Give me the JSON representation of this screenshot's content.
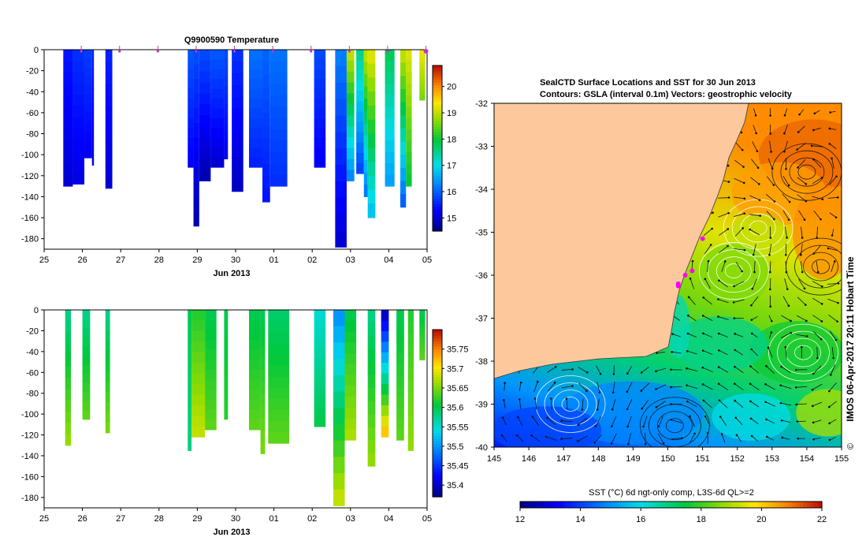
{
  "chart_data": [
    {
      "type": "heatmap",
      "title": "Q9900590  Temperature",
      "xlabel": "Jun 2013",
      "ylabel": "",
      "x_ticks": [
        "25",
        "26",
        "27",
        "28",
        "29",
        "30",
        "01",
        "02",
        "03",
        "04",
        "05"
      ],
      "y_ticks": [
        "0",
        "-20",
        "-40",
        "-60",
        "-80",
        "-100",
        "-120",
        "-140",
        "-160",
        "-180"
      ],
      "xlim": [
        25,
        35
      ],
      "ylim": [
        -190,
        0
      ],
      "colorbar": {
        "ticks": [
          "15",
          "16",
          "17",
          "18",
          "19",
          "20"
        ],
        "range": [
          14.5,
          20.8
        ]
      },
      "profiles": [
        {
          "day": 25.5,
          "width": 0.25,
          "depth": 130,
          "top": 15.4,
          "bottom": 15.0
        },
        {
          "day": 25.75,
          "width": 0.3,
          "depth": 128,
          "top": 15.6,
          "bottom": 15.1
        },
        {
          "day": 26.05,
          "width": 0.2,
          "depth": 103,
          "top": 15.7,
          "bottom": 15.2
        },
        {
          "day": 26.25,
          "width": 0.05,
          "depth": 110,
          "top": 15.5,
          "bottom": 15.0
        },
        {
          "day": 26.6,
          "width": 0.18,
          "depth": 132,
          "top": 15.5,
          "bottom": 15.0
        },
        {
          "day": 28.75,
          "width": 0.15,
          "depth": 112,
          "top": 15.9,
          "bottom": 15.2
        },
        {
          "day": 28.9,
          "width": 0.15,
          "depth": 168,
          "top": 15.8,
          "bottom": 14.8
        },
        {
          "day": 29.05,
          "width": 0.3,
          "depth": 125,
          "top": 15.8,
          "bottom": 14.8
        },
        {
          "day": 29.35,
          "width": 0.35,
          "depth": 112,
          "top": 15.9,
          "bottom": 15.0
        },
        {
          "day": 29.7,
          "width": 0.1,
          "depth": 104,
          "top": 15.8,
          "bottom": 15.2
        },
        {
          "day": 29.9,
          "width": 0.3,
          "depth": 135,
          "top": 15.6,
          "bottom": 14.9
        },
        {
          "day": 30.35,
          "width": 0.35,
          "depth": 112,
          "top": 16.1,
          "bottom": 15.5
        },
        {
          "day": 30.7,
          "width": 0.2,
          "depth": 145,
          "top": 16.0,
          "bottom": 15.4
        },
        {
          "day": 30.9,
          "width": 0.45,
          "depth": 130,
          "top": 16.1,
          "bottom": 15.6
        },
        {
          "day": 32.05,
          "width": 0.3,
          "depth": 112,
          "top": 15.8,
          "bottom": 15.2
        },
        {
          "day": 32.6,
          "width": 0.3,
          "depth": 188,
          "top": 16.2,
          "bottom": 15.0
        },
        {
          "day": 32.9,
          "width": 0.2,
          "depth": 125,
          "top": 19.0,
          "bottom": 16.3
        },
        {
          "day": 33.15,
          "width": 0.2,
          "depth": 118,
          "top": 17.5,
          "bottom": 15.8
        },
        {
          "day": 33.35,
          "width": 0.1,
          "depth": 140,
          "top": 19.0,
          "bottom": 16.2
        },
        {
          "day": 33.45,
          "width": 0.2,
          "depth": 160,
          "top": 19.2,
          "bottom": 16.8
        },
        {
          "day": 33.9,
          "width": 0.25,
          "depth": 130,
          "top": 17.8,
          "bottom": 16.5
        },
        {
          "day": 34.3,
          "width": 0.15,
          "depth": 150,
          "top": 19.0,
          "bottom": 16.0
        },
        {
          "day": 34.45,
          "width": 0.15,
          "depth": 130,
          "top": 19.2,
          "bottom": 18.0
        },
        {
          "day": 34.8,
          "width": 0.15,
          "depth": 48,
          "top": 19.3,
          "bottom": 18.6
        }
      ],
      "cast_markers": [
        26,
        27,
        28,
        29,
        30,
        31,
        32,
        33,
        34,
        35
      ]
    },
    {
      "type": "heatmap",
      "title": "",
      "xlabel": "Jun 2013",
      "ylabel": "",
      "x_ticks": [
        "25",
        "26",
        "27",
        "28",
        "29",
        "30",
        "01",
        "02",
        "03",
        "04",
        "05"
      ],
      "y_ticks": [
        "0",
        "-20",
        "-40",
        "-60",
        "-80",
        "-100",
        "-120",
        "-140",
        "-160",
        "-180"
      ],
      "xlim": [
        25,
        35
      ],
      "ylim": [
        -190,
        0
      ],
      "colorbar": {
        "ticks": [
          "35.4",
          "35.45",
          "35.5",
          "35.55",
          "35.6",
          "35.65",
          "35.7",
          "35.75"
        ],
        "range": [
          35.37,
          35.8
        ]
      },
      "profiles": [
        {
          "day": 25.55,
          "width": 0.15,
          "depth": 130,
          "top": 35.58,
          "bottom": 35.66
        },
        {
          "day": 26.0,
          "width": 0.2,
          "depth": 105,
          "top": 35.58,
          "bottom": 35.64
        },
        {
          "day": 26.6,
          "width": 0.12,
          "depth": 118,
          "top": 35.58,
          "bottom": 35.65
        },
        {
          "day": 28.75,
          "width": 0.1,
          "depth": 135,
          "top": 35.6,
          "bottom": 35.58
        },
        {
          "day": 28.85,
          "width": 0.35,
          "depth": 122,
          "top": 35.62,
          "bottom": 35.68
        },
        {
          "day": 29.2,
          "width": 0.3,
          "depth": 115,
          "top": 35.6,
          "bottom": 35.64
        },
        {
          "day": 29.7,
          "width": 0.1,
          "depth": 105,
          "top": 35.6,
          "bottom": 35.62
        },
        {
          "day": 30.35,
          "width": 0.3,
          "depth": 115,
          "top": 35.6,
          "bottom": 35.64
        },
        {
          "day": 30.65,
          "width": 0.12,
          "depth": 138,
          "top": 35.6,
          "bottom": 35.65
        },
        {
          "day": 30.85,
          "width": 0.55,
          "depth": 128,
          "top": 35.59,
          "bottom": 35.64
        },
        {
          "day": 32.05,
          "width": 0.3,
          "depth": 112,
          "top": 35.55,
          "bottom": 35.6
        },
        {
          "day": 32.55,
          "width": 0.3,
          "depth": 188,
          "top": 35.5,
          "bottom": 35.68
        },
        {
          "day": 32.85,
          "width": 0.3,
          "depth": 125,
          "top": 35.6,
          "bottom": 35.67
        },
        {
          "day": 33.45,
          "width": 0.2,
          "depth": 150,
          "top": 35.58,
          "bottom": 35.66
        },
        {
          "day": 33.8,
          "width": 0.2,
          "depth": 122,
          "top": 35.4,
          "bottom": 35.72
        },
        {
          "day": 34.2,
          "width": 0.2,
          "depth": 125,
          "top": 35.6,
          "bottom": 35.64
        },
        {
          "day": 34.5,
          "width": 0.15,
          "depth": 135,
          "top": 35.62,
          "bottom": 35.66
        },
        {
          "day": 34.8,
          "width": 0.15,
          "depth": 48,
          "top": 35.6,
          "bottom": 35.64
        }
      ],
      "cast_markers": []
    },
    {
      "type": "heatmap",
      "title": "SealCTD Surface Locations and SST for 30 Jun 2013",
      "subtitle": "Contours: GSLA (interval 0.1m) Vectors: geostrophic velocity",
      "xlabel": "",
      "ylabel": "",
      "x_ticks": [
        "145",
        "146",
        "147",
        "148",
        "149",
        "150",
        "151",
        "152",
        "153",
        "154",
        "155"
      ],
      "y_ticks": [
        "-32",
        "-33",
        "-34",
        "-35",
        "-36",
        "-37",
        "-38",
        "-39",
        "-40"
      ],
      "xlim": [
        145,
        155
      ],
      "ylim": [
        -40,
        -32
      ],
      "side_label": "IMOS 06-Apr-2017 20:11 Hobart Time",
      "copyright": "©",
      "colorbar": {
        "label": "SST (°C) 6d ngt-only comp, L3S-6d QL>=2",
        "ticks": [
          "12",
          "14",
          "16",
          "18",
          "20",
          "22"
        ],
        "range": [
          12,
          22
        ]
      },
      "eddies": [
        {
          "lon": 154.0,
          "lat": -33.6,
          "sign": -1
        },
        {
          "lon": 152.6,
          "lat": -34.9,
          "sign": 1
        },
        {
          "lon": 151.9,
          "lat": -35.9,
          "sign": 1
        },
        {
          "lon": 154.4,
          "lat": -35.8,
          "sign": -1
        },
        {
          "lon": 153.9,
          "lat": -37.8,
          "sign": 1
        },
        {
          "lon": 150.2,
          "lat": -39.5,
          "sign": -1
        },
        {
          "lon": 147.2,
          "lat": -39.0,
          "sign": 1
        }
      ],
      "seal_locations": [
        {
          "lon": 151.0,
          "lat": -35.15
        },
        {
          "lon": 150.3,
          "lat": -36.2
        },
        {
          "lon": 150.3,
          "lat": -36.25
        },
        {
          "lon": 150.5,
          "lat": -36.0
        },
        {
          "lon": 150.7,
          "lat": -35.9
        }
      ]
    }
  ]
}
